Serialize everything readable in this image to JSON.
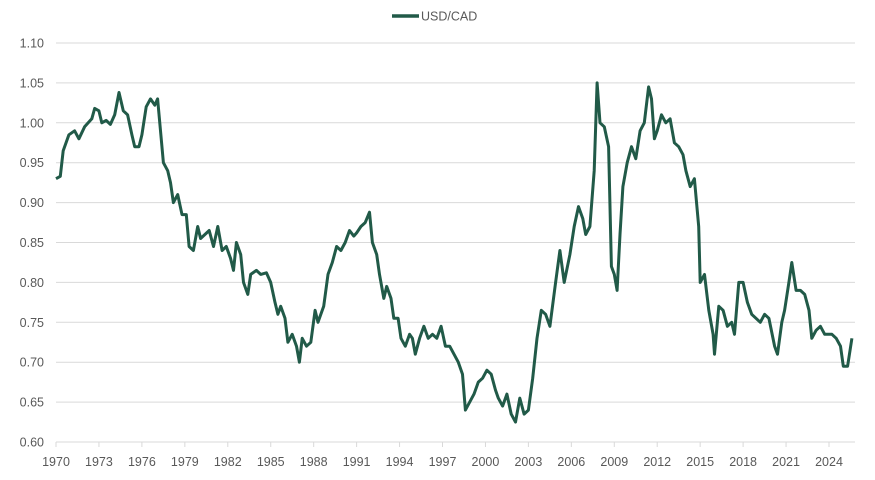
{
  "chart_data": {
    "type": "line",
    "title": "",
    "xlabel": "",
    "ylabel": "",
    "legend": {
      "placement": "top",
      "entries": [
        "USD/CAD"
      ]
    },
    "grid": {
      "horizontal": true,
      "vertical": false
    },
    "colors": {
      "series": "#215a48",
      "grid": "#d9d9d9",
      "text": "#595959"
    },
    "xlim": [
      1970,
      2025.8
    ],
    "ylim": [
      0.6,
      1.1
    ],
    "x_ticks": [
      "1970",
      "1973",
      "1976",
      "1979",
      "1982",
      "1985",
      "1988",
      "1991",
      "1994",
      "1997",
      "2000",
      "2003",
      "2006",
      "2009",
      "2012",
      "2015",
      "2018",
      "2021",
      "2024"
    ],
    "y_ticks": [
      "0.60",
      "0.65",
      "0.70",
      "0.75",
      "0.80",
      "0.85",
      "0.90",
      "0.95",
      "1.00",
      "1.05",
      "1.10"
    ],
    "series": [
      {
        "name": "USD/CAD",
        "points": [
          [
            1970.0,
            0.93
          ],
          [
            1970.3,
            0.933
          ],
          [
            1970.5,
            0.965
          ],
          [
            1970.9,
            0.985
          ],
          [
            1971.3,
            0.99
          ],
          [
            1971.6,
            0.98
          ],
          [
            1972.0,
            0.995
          ],
          [
            1972.5,
            1.005
          ],
          [
            1972.7,
            1.018
          ],
          [
            1973.0,
            1.015
          ],
          [
            1973.2,
            1.0
          ],
          [
            1973.5,
            1.003
          ],
          [
            1973.8,
            0.998
          ],
          [
            1974.1,
            1.01
          ],
          [
            1974.4,
            1.038
          ],
          [
            1974.7,
            1.015
          ],
          [
            1975.0,
            1.01
          ],
          [
            1975.3,
            0.985
          ],
          [
            1975.5,
            0.97
          ],
          [
            1975.8,
            0.97
          ],
          [
            1976.0,
            0.985
          ],
          [
            1976.3,
            1.02
          ],
          [
            1976.6,
            1.03
          ],
          [
            1976.9,
            1.022
          ],
          [
            1977.1,
            1.03
          ],
          [
            1977.3,
            0.99
          ],
          [
            1977.5,
            0.95
          ],
          [
            1977.8,
            0.94
          ],
          [
            1978.0,
            0.925
          ],
          [
            1978.2,
            0.9
          ],
          [
            1978.5,
            0.91
          ],
          [
            1978.8,
            0.885
          ],
          [
            1979.1,
            0.885
          ],
          [
            1979.3,
            0.845
          ],
          [
            1979.6,
            0.84
          ],
          [
            1979.9,
            0.87
          ],
          [
            1980.1,
            0.855
          ],
          [
            1980.4,
            0.86
          ],
          [
            1980.7,
            0.865
          ],
          [
            1981.0,
            0.845
          ],
          [
            1981.3,
            0.87
          ],
          [
            1981.6,
            0.84
          ],
          [
            1981.9,
            0.845
          ],
          [
            1982.2,
            0.83
          ],
          [
            1982.4,
            0.815
          ],
          [
            1982.6,
            0.85
          ],
          [
            1982.9,
            0.835
          ],
          [
            1983.1,
            0.8
          ],
          [
            1983.4,
            0.785
          ],
          [
            1983.6,
            0.81
          ],
          [
            1984.0,
            0.815
          ],
          [
            1984.3,
            0.81
          ],
          [
            1984.7,
            0.812
          ],
          [
            1985.0,
            0.8
          ],
          [
            1985.3,
            0.775
          ],
          [
            1985.5,
            0.76
          ],
          [
            1985.7,
            0.77
          ],
          [
            1986.0,
            0.755
          ],
          [
            1986.2,
            0.725
          ],
          [
            1986.5,
            0.735
          ],
          [
            1986.8,
            0.72
          ],
          [
            1987.0,
            0.7
          ],
          [
            1987.2,
            0.73
          ],
          [
            1987.5,
            0.72
          ],
          [
            1987.8,
            0.725
          ],
          [
            1988.1,
            0.765
          ],
          [
            1988.3,
            0.75
          ],
          [
            1988.7,
            0.77
          ],
          [
            1989.0,
            0.81
          ],
          [
            1989.3,
            0.825
          ],
          [
            1989.6,
            0.845
          ],
          [
            1989.9,
            0.84
          ],
          [
            1990.2,
            0.85
          ],
          [
            1990.5,
            0.865
          ],
          [
            1990.8,
            0.858
          ],
          [
            1991.0,
            0.862
          ],
          [
            1991.3,
            0.87
          ],
          [
            1991.6,
            0.875
          ],
          [
            1991.9,
            0.888
          ],
          [
            1992.1,
            0.85
          ],
          [
            1992.4,
            0.835
          ],
          [
            1992.6,
            0.81
          ],
          [
            1992.9,
            0.78
          ],
          [
            1993.1,
            0.795
          ],
          [
            1993.4,
            0.78
          ],
          [
            1993.6,
            0.755
          ],
          [
            1993.9,
            0.755
          ],
          [
            1994.1,
            0.73
          ],
          [
            1994.4,
            0.72
          ],
          [
            1994.7,
            0.735
          ],
          [
            1994.9,
            0.73
          ],
          [
            1995.1,
            0.71
          ],
          [
            1995.4,
            0.73
          ],
          [
            1995.7,
            0.745
          ],
          [
            1996.0,
            0.73
          ],
          [
            1996.3,
            0.735
          ],
          [
            1996.6,
            0.73
          ],
          [
            1996.9,
            0.745
          ],
          [
            1997.2,
            0.72
          ],
          [
            1997.5,
            0.72
          ],
          [
            1997.8,
            0.71
          ],
          [
            1998.1,
            0.7
          ],
          [
            1998.4,
            0.685
          ],
          [
            1998.6,
            0.64
          ],
          [
            1998.9,
            0.65
          ],
          [
            1999.2,
            0.66
          ],
          [
            1999.5,
            0.675
          ],
          [
            1999.8,
            0.68
          ],
          [
            2000.1,
            0.69
          ],
          [
            2000.4,
            0.685
          ],
          [
            2000.7,
            0.665
          ],
          [
            2000.9,
            0.655
          ],
          [
            2001.2,
            0.645
          ],
          [
            2001.5,
            0.66
          ],
          [
            2001.8,
            0.635
          ],
          [
            2002.1,
            0.625
          ],
          [
            2002.4,
            0.655
          ],
          [
            2002.7,
            0.635
          ],
          [
            2003.0,
            0.64
          ],
          [
            2003.3,
            0.68
          ],
          [
            2003.6,
            0.73
          ],
          [
            2003.9,
            0.765
          ],
          [
            2004.2,
            0.76
          ],
          [
            2004.5,
            0.745
          ],
          [
            2004.9,
            0.8
          ],
          [
            2005.2,
            0.84
          ],
          [
            2005.5,
            0.8
          ],
          [
            2005.9,
            0.835
          ],
          [
            2006.2,
            0.87
          ],
          [
            2006.5,
            0.895
          ],
          [
            2006.8,
            0.88
          ],
          [
            2007.0,
            0.86
          ],
          [
            2007.3,
            0.87
          ],
          [
            2007.6,
            0.94
          ],
          [
            2007.8,
            1.05
          ],
          [
            2008.0,
            1.0
          ],
          [
            2008.3,
            0.995
          ],
          [
            2008.6,
            0.97
          ],
          [
            2008.8,
            0.82
          ],
          [
            2009.0,
            0.81
          ],
          [
            2009.2,
            0.79
          ],
          [
            2009.4,
            0.86
          ],
          [
            2009.6,
            0.92
          ],
          [
            2009.9,
            0.95
          ],
          [
            2010.2,
            0.97
          ],
          [
            2010.5,
            0.955
          ],
          [
            2010.8,
            0.99
          ],
          [
            2011.1,
            1.0
          ],
          [
            2011.4,
            1.045
          ],
          [
            2011.6,
            1.03
          ],
          [
            2011.8,
            0.98
          ],
          [
            2012.0,
            0.99
          ],
          [
            2012.3,
            1.01
          ],
          [
            2012.6,
            1.0
          ],
          [
            2012.9,
            1.005
          ],
          [
            2013.2,
            0.975
          ],
          [
            2013.5,
            0.97
          ],
          [
            2013.8,
            0.96
          ],
          [
            2014.0,
            0.94
          ],
          [
            2014.3,
            0.92
          ],
          [
            2014.6,
            0.93
          ],
          [
            2014.9,
            0.87
          ],
          [
            2015.0,
            0.8
          ],
          [
            2015.3,
            0.81
          ],
          [
            2015.6,
            0.765
          ],
          [
            2015.9,
            0.735
          ],
          [
            2016.0,
            0.71
          ],
          [
            2016.3,
            0.77
          ],
          [
            2016.6,
            0.765
          ],
          [
            2016.9,
            0.745
          ],
          [
            2017.2,
            0.75
          ],
          [
            2017.4,
            0.735
          ],
          [
            2017.7,
            0.8
          ],
          [
            2018.0,
            0.8
          ],
          [
            2018.3,
            0.775
          ],
          [
            2018.6,
            0.76
          ],
          [
            2018.9,
            0.755
          ],
          [
            2019.2,
            0.75
          ],
          [
            2019.5,
            0.76
          ],
          [
            2019.8,
            0.755
          ],
          [
            2020.2,
            0.72
          ],
          [
            2020.4,
            0.71
          ],
          [
            2020.7,
            0.75
          ],
          [
            2020.9,
            0.765
          ],
          [
            2021.2,
            0.8
          ],
          [
            2021.4,
            0.825
          ],
          [
            2021.7,
            0.79
          ],
          [
            2022.0,
            0.79
          ],
          [
            2022.3,
            0.785
          ],
          [
            2022.6,
            0.765
          ],
          [
            2022.8,
            0.73
          ],
          [
            2023.1,
            0.74
          ],
          [
            2023.4,
            0.745
          ],
          [
            2023.7,
            0.735
          ],
          [
            2023.9,
            0.735
          ],
          [
            2024.2,
            0.735
          ],
          [
            2024.5,
            0.73
          ],
          [
            2024.8,
            0.72
          ],
          [
            2025.0,
            0.695
          ],
          [
            2025.3,
            0.695
          ],
          [
            2025.6,
            0.73
          ]
        ]
      }
    ]
  }
}
